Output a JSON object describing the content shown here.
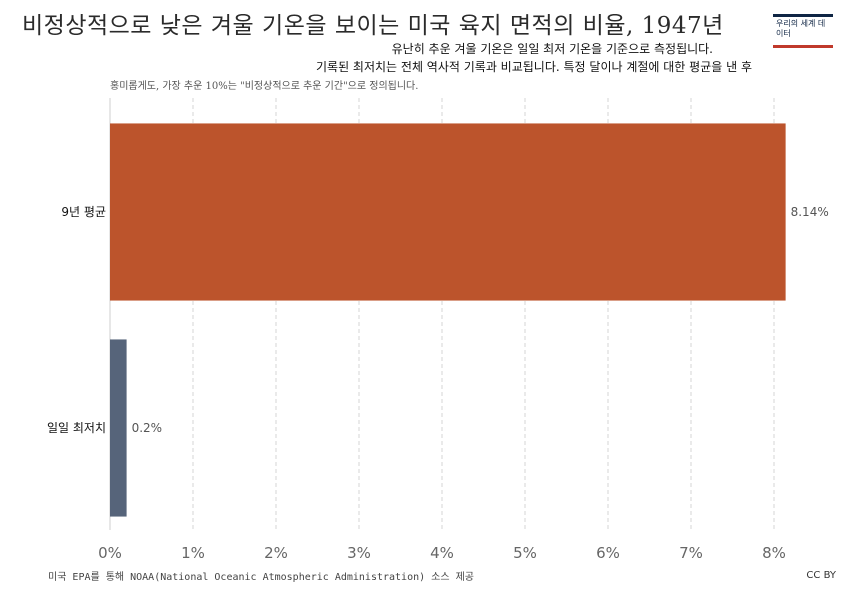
{
  "title": "비정상적으로 낮은 겨울 기온을 보이는 미국 육지 면적의 비율, 1947년",
  "subtitle_line1": "유난히 추운 겨울 기온은 일일 최저 기온을 기준으로 측정됩니다.",
  "subtitle_line2": "기록된 최저치는 전체 역사적 기록과 비교됩니다. 특정 달이나 계절에 대한 평균을 낸 후",
  "note": "홍미롭게도, 가장 추운 10%는 \"비정상적으로 추운 기간\"으로 정의됩니다.",
  "logo_text": "우리의 세계 데이터",
  "source": "미국 EPA를 통해 NOAA(National Oceanic Atmospheric Administration) 소스 제공",
  "license": "CC BY",
  "chart_data": {
    "type": "bar",
    "orientation": "horizontal",
    "categories": [
      "9년 평균",
      "일일 최저치"
    ],
    "values": [
      8.14,
      0.2
    ],
    "value_labels": [
      "8.14%",
      "0.2%"
    ],
    "colors": [
      "#bc542c",
      "#56647a"
    ],
    "xlim": [
      0,
      8
    ],
    "xticks": [
      0,
      1,
      2,
      3,
      4,
      5,
      6,
      7,
      8
    ],
    "xtick_labels": [
      "0%",
      "1%",
      "2%",
      "3%",
      "4%",
      "5%",
      "6%",
      "7%",
      "8%"
    ],
    "grid": "vertical dashed"
  }
}
